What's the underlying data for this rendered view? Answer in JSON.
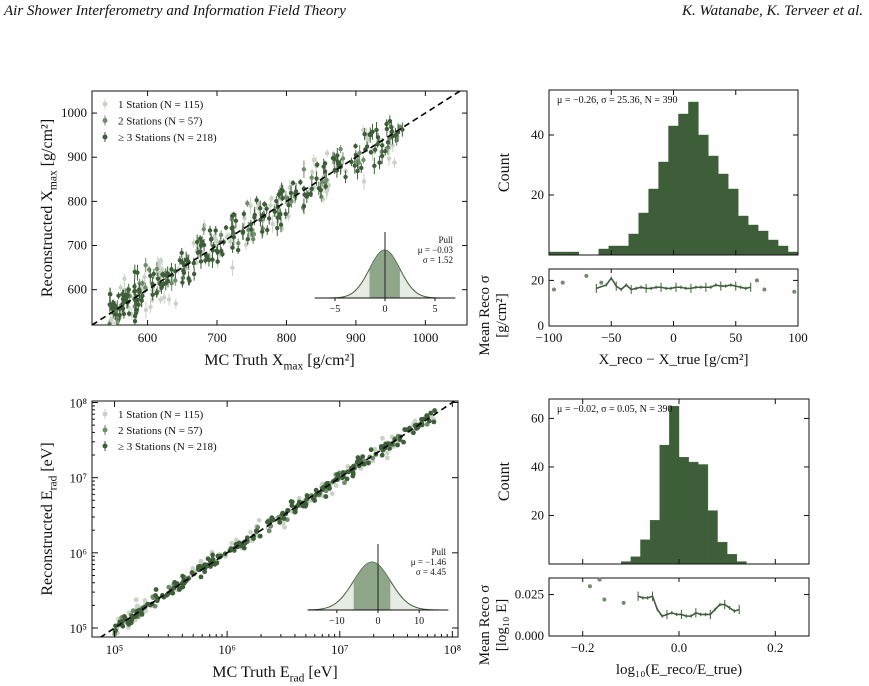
{
  "header": {
    "left": "Air Shower Interferometry and Information Field Theory",
    "right": "K. Watanabe, K. Terveer et al."
  },
  "colors": {
    "dark_green": "#3d5e38",
    "mid_green": "#6f8d6a",
    "light_green": "#c9d3c6",
    "shade": "#7f9a7a"
  },
  "chart_data": [
    {
      "id": "xmax_scatter",
      "type": "scatter",
      "xlabel_main": "MC Truth X",
      "xlabel_sub": "max",
      "xlabel_unit": "[g/cm²]",
      "ylabel_main": "Reconstructed X",
      "ylabel_sub": "max",
      "ylabel_unit": "[g/cm²]",
      "xlim": [
        520,
        1060
      ],
      "ylim": [
        520,
        1050
      ],
      "xticks": [
        "600",
        "700",
        "800",
        "900",
        "1000"
      ],
      "yticks": [
        "600",
        "700",
        "800",
        "900",
        "1000"
      ],
      "legend": [
        "1 Station (N = 115)",
        "2 Stations (N = 57)",
        "≥ 3 Stations (N = 218)"
      ],
      "legend_position": "top-left",
      "diagonal": "y = x (dashed)",
      "series_trend": "points scatter around y = x with sigma ≈ 25 g/cm²",
      "x_range_points": [
        545,
        970
      ],
      "pull_inset": {
        "title": "Pull",
        "mu": "μ = −0.03",
        "sigma": "σ = 1.52",
        "mu_val": -0.03,
        "sigma_val": 1.52,
        "xticks": [
          "−5",
          "0",
          "5"
        ],
        "xlim": [
          -7,
          7
        ]
      }
    },
    {
      "id": "xmax_hist",
      "type": "bar",
      "annotation": "μ = −0.26, σ = 25.36, N = 390",
      "ylabel": "Count",
      "xlim": [
        -100,
        100
      ],
      "ylim": [
        0,
        55
      ],
      "yticks": [
        "20",
        "40"
      ],
      "bin_edges_start": -100,
      "bin_width": 8,
      "values": [
        1,
        1,
        1,
        0,
        0,
        2,
        3,
        3,
        7,
        14,
        22,
        31,
        43,
        47,
        51,
        40,
        33,
        27,
        22,
        13,
        10,
        8,
        5,
        3,
        1,
        0
      ],
      "residual_panel": {
        "ylabel": "Mean Reco σ",
        "ylabel_unit": "[g/cm²]",
        "ylim": [
          0,
          25
        ],
        "yticks": [
          "0",
          "20"
        ],
        "xticks": [
          "−100",
          "−50",
          "0",
          "50",
          "100"
        ],
        "xlabel": "X_reco − X_true [g/cm²]",
        "line_x": [
          -62,
          -54,
          -50,
          -46,
          -42,
          -38,
          -34,
          -30,
          -26,
          -22,
          -18,
          -14,
          -10,
          -6,
          -2,
          2,
          6,
          10,
          14,
          18,
          22,
          26,
          30,
          34,
          38,
          42,
          46,
          50,
          54,
          58,
          62
        ],
        "line_y": [
          16.5,
          18,
          21,
          17.5,
          16,
          18,
          16,
          16.5,
          17,
          16.5,
          16.5,
          17,
          17,
          16.5,
          16.5,
          17,
          17,
          16.5,
          16.5,
          17,
          17,
          17,
          17,
          18,
          17.5,
          17.5,
          18,
          17.5,
          17,
          16.5,
          17
        ],
        "outliers_x": [
          -96,
          -89,
          -70,
          -58,
          67,
          73,
          97
        ],
        "outliers_y": [
          16,
          19,
          22,
          19,
          20,
          16,
          15
        ]
      }
    },
    {
      "id": "erad_scatter",
      "type": "scatter",
      "xlabel_main": "MC Truth E",
      "xlabel_sub": "rad",
      "xlabel_unit": "[eV]",
      "ylabel_main": "Reconstructed E",
      "ylabel_sub": "rad",
      "ylabel_unit": "[eV]",
      "scale": "log",
      "xlim_log10": [
        4.8,
        8.05
      ],
      "ylim_log10": [
        4.88,
        8.02
      ],
      "xticks": [
        "10⁵",
        "10⁶",
        "10⁷",
        "10⁸"
      ],
      "yticks": [
        "10⁵",
        "10⁶",
        "10⁷",
        "10⁸"
      ],
      "legend": [
        "1 Station (N = 115)",
        "2 Stations (N = 57)",
        "≥ 3 Stations (N = 218)"
      ],
      "legend_position": "top-left",
      "diagonal": "y = x (dashed)",
      "x_range_points_log10": [
        5.0,
        7.85
      ],
      "pull_inset": {
        "title": "Pull",
        "mu": "μ = −1.46",
        "sigma": "σ = 4.45",
        "mu_val": -1.46,
        "sigma_val": 4.45,
        "xticks": [
          "−10",
          "0",
          "10"
        ],
        "xlim": [
          -17,
          17
        ]
      }
    },
    {
      "id": "erad_hist",
      "type": "bar",
      "annotation": "μ = −0.02, σ = 0.05, N = 390",
      "ylabel": "Count",
      "xlim": [
        -0.27,
        0.27
      ],
      "ylim": [
        0,
        68
      ],
      "yticks": [
        "20",
        "40",
        "60"
      ],
      "bin_edges_start": -0.16,
      "bin_width": 0.02,
      "values": [
        0,
        0,
        1,
        3,
        10,
        18,
        49,
        65,
        44,
        42,
        41,
        22,
        9,
        4,
        1
      ],
      "residual_panel": {
        "ylabel": "Mean Reco σ",
        "ylabel_unit": "[log₁₀ E]",
        "ylim": [
          0,
          0.035
        ],
        "yticks": [
          "0.000",
          "0.025"
        ],
        "xticks": [
          "−0.2",
          "0.0",
          "0.2"
        ],
        "xlabel": "log₁₀(E_reco/E_true)",
        "line_x": [
          -0.085,
          -0.075,
          -0.065,
          -0.055,
          -0.045,
          -0.035,
          -0.025,
          -0.015,
          -0.005,
          0.005,
          0.015,
          0.025,
          0.035,
          0.045,
          0.055,
          0.065,
          0.075,
          0.085,
          0.095,
          0.105,
          0.115,
          0.125
        ],
        "line_y": [
          0.024,
          0.023,
          0.023,
          0.024,
          0.016,
          0.012,
          0.013,
          0.014,
          0.013,
          0.013,
          0.012,
          0.012,
          0.014,
          0.013,
          0.013,
          0.013,
          0.016,
          0.019,
          0.019,
          0.017,
          0.015,
          0.016
        ],
        "outliers_x": [
          -0.185,
          -0.165,
          -0.155,
          -0.115
        ],
        "outliers_y": [
          0.03,
          0.034,
          0.022,
          0.02
        ]
      }
    }
  ]
}
